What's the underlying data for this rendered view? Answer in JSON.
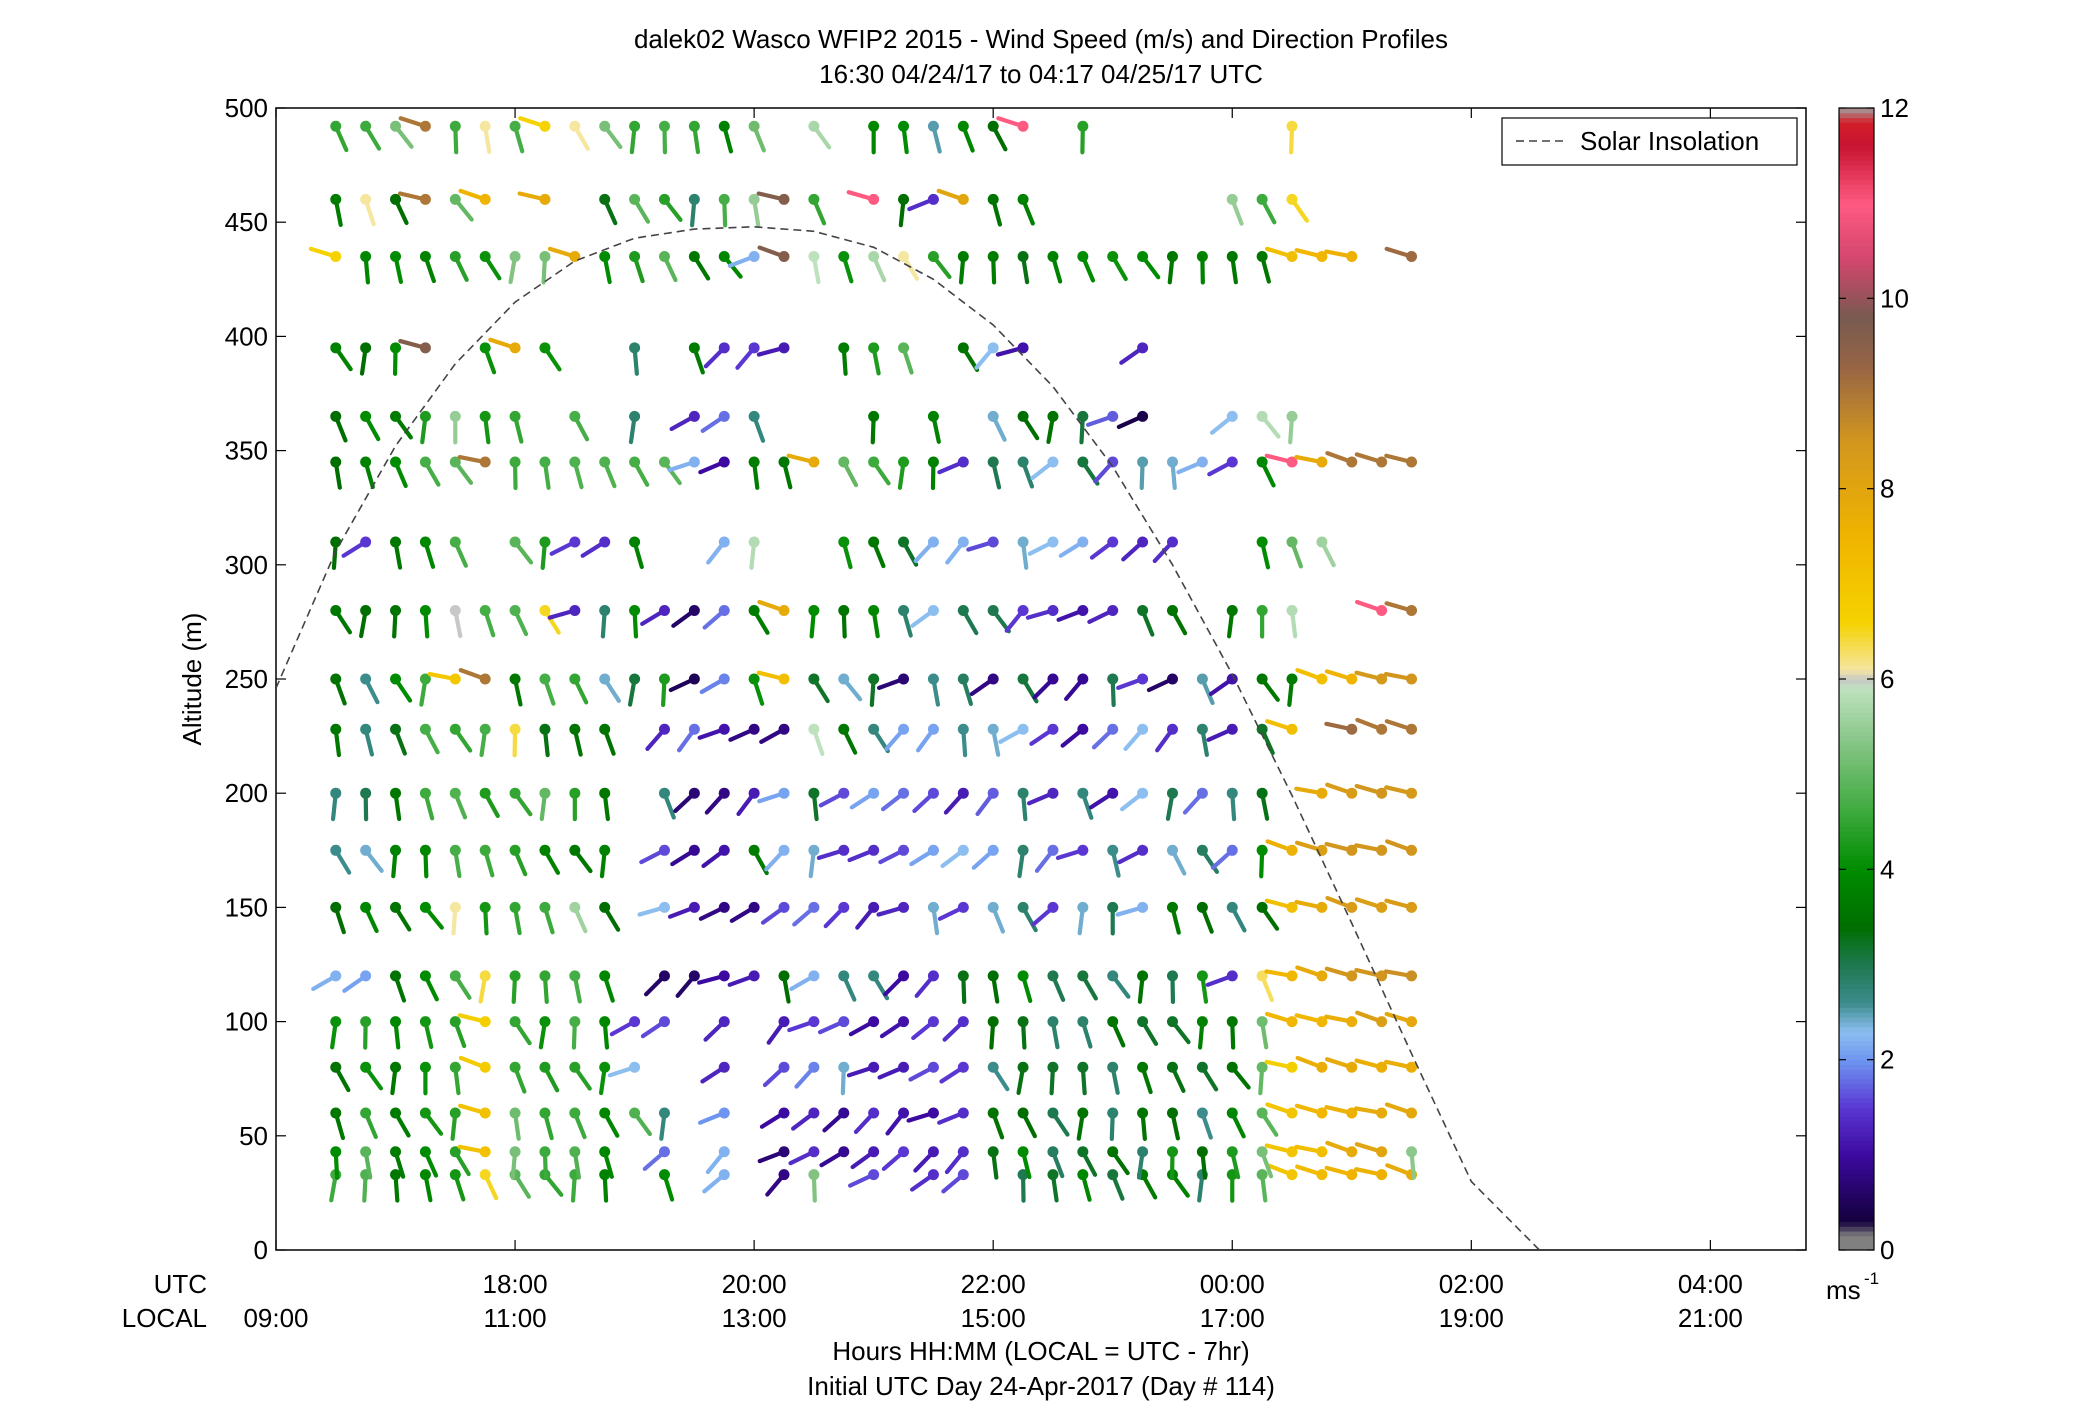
{
  "chart_data": {
    "type": "wind-barb-profile",
    "title_line1": "dalek02 Wasco WFIP2 2015 - Wind Speed (m/s) and Direction Profiles",
    "title_line2": "16:30 04/24/17 to 04:17 04/25/17  UTC",
    "ylabel": "Altitude (m)",
    "xlabel_line1": "Hours HH:MM  (LOCAL = UTC - 7hr)",
    "xlabel_line2": "Initial UTC Day 24-Apr-2017 (Day # 114)",
    "utc_row_label": "UTC",
    "local_row_label": "LOCAL",
    "ylim": [
      0,
      500
    ],
    "y_ticks": [
      0,
      50,
      100,
      150,
      200,
      250,
      300,
      350,
      400,
      450,
      500
    ],
    "y_tick_labels": [
      "0",
      "50",
      "100",
      "150",
      "200",
      "250",
      "300",
      "350",
      "400",
      "450",
      "500"
    ],
    "x_range_hours": [
      16.0,
      28.8
    ],
    "x_ticks_hours": [
      16,
      18,
      20,
      22,
      24,
      26,
      28
    ],
    "x_tick_utc": [
      "",
      "18:00",
      "20:00",
      "22:00",
      "00:00",
      "02:00",
      "04:00"
    ],
    "x_tick_local": [
      "09:00",
      "11:00",
      "13:00",
      "15:00",
      "17:00",
      "19:00",
      "21:00"
    ],
    "legend": {
      "entry": "Solar Insolation",
      "placement": "top-right",
      "style": "dashed"
    },
    "colorbar": {
      "unit_label": "ms",
      "unit_exponent": "-1",
      "range": [
        0,
        12
      ],
      "ticks": [
        0,
        2,
        4,
        6,
        8,
        10,
        12
      ],
      "tick_labels": [
        "0",
        "2",
        "4",
        "6",
        "8",
        "10",
        "12"
      ],
      "stops": [
        {
          "v": 0.0,
          "c": "#808080"
        },
        {
          "v": 0.15,
          "c": "#808080"
        },
        {
          "v": 0.3,
          "c": "#14003c"
        },
        {
          "v": 1.0,
          "c": "#3c0aa0"
        },
        {
          "v": 1.5,
          "c": "#5a37d2"
        },
        {
          "v": 2.0,
          "c": "#6e96f0"
        },
        {
          "v": 2.3,
          "c": "#8cbef0"
        },
        {
          "v": 2.6,
          "c": "#3c8c8c"
        },
        {
          "v": 3.0,
          "c": "#1e7850"
        },
        {
          "v": 3.4,
          "c": "#006e00"
        },
        {
          "v": 4.0,
          "c": "#008c00"
        },
        {
          "v": 4.6,
          "c": "#3caa3c"
        },
        {
          "v": 5.3,
          "c": "#82c382"
        },
        {
          "v": 5.9,
          "c": "#bee1be"
        },
        {
          "v": 6.0,
          "c": "#c8c8c8"
        },
        {
          "v": 6.1,
          "c": "#f5e6a0"
        },
        {
          "v": 6.6,
          "c": "#f5d200"
        },
        {
          "v": 7.5,
          "c": "#f0b400"
        },
        {
          "v": 8.5,
          "c": "#d2961e"
        },
        {
          "v": 9.3,
          "c": "#966446"
        },
        {
          "v": 9.8,
          "c": "#785a50"
        },
        {
          "v": 10.4,
          "c": "#d2466e"
        },
        {
          "v": 11.0,
          "c": "#ff5a82"
        },
        {
          "v": 11.6,
          "c": "#c81432"
        },
        {
          "v": 11.85,
          "c": "#d21e28"
        },
        {
          "v": 12.0,
          "c": "#a0a0a0"
        }
      ]
    },
    "solar_insolation_curve": {
      "hours": [
        16.0,
        16.5,
        17.0,
        17.5,
        18.0,
        18.5,
        19.0,
        19.5,
        20.0,
        20.5,
        21.0,
        21.5,
        22.0,
        22.5,
        23.0,
        23.5,
        24.0,
        24.5,
        25.0,
        25.5,
        26.0,
        26.57
      ],
      "altitude_m": [
        246,
        306,
        352,
        388,
        415,
        433,
        443,
        447,
        448,
        446,
        439,
        425,
        405,
        378,
        343,
        300,
        252,
        199,
        143,
        86,
        30,
        0
      ]
    },
    "barb_times_hours": [
      16.5,
      16.75,
      17.0,
      17.25,
      17.5,
      17.75,
      18.0,
      18.25,
      18.5,
      18.75,
      19.0,
      19.25,
      19.5,
      19.75,
      20.0,
      20.25,
      20.5,
      20.75,
      21.0,
      21.25,
      21.5,
      21.75,
      22.0,
      22.25,
      22.5,
      22.75,
      23.0,
      23.25,
      23.5,
      23.75,
      24.0,
      24.25,
      24.5,
      24.75,
      25.0,
      25.25,
      25.5
    ],
    "barb_altitudes_m": [
      33,
      43,
      60,
      80,
      100,
      120,
      150,
      175,
      200,
      228,
      250,
      280,
      310,
      345,
      365,
      395,
      435,
      460,
      492
    ],
    "wind_speed_ms": [
      [
        4.6,
        4.8,
        3.6,
        3.9,
        4.2,
        6.5,
        4.9,
        4.5,
        4.6,
        3.8,
        0.0,
        4.0,
        0.0,
        2.2,
        0.0,
        0.8,
        5.3,
        0.0,
        1.6,
        0.0,
        1.4,
        1.6,
        0.0,
        3.0,
        3.2,
        3.9,
        3.1,
        3.7,
        3.8,
        2.8,
        4.2,
        4.9,
        7.0,
        7.3,
        7.5,
        7.6,
        7.8
      ],
      [
        4.0,
        4.9,
        3.7,
        4.0,
        4.4,
        7.1,
        5.2,
        4.6,
        4.8,
        3.9,
        0.0,
        1.8,
        0.0,
        2.2,
        0.0,
        0.7,
        1.4,
        0.9,
        1.2,
        1.5,
        1.2,
        1.4,
        3.3,
        4.0,
        2.9,
        3.2,
        3.5,
        2.8,
        4.2,
        3.4,
        4.3,
        5.2,
        7.0,
        7.2,
        7.8,
        8.0,
        5.4
      ],
      [
        3.6,
        4.5,
        3.7,
        4.2,
        4.4,
        7.1,
        5.1,
        4.5,
        4.6,
        3.9,
        4.8,
        2.7,
        0.0,
        2.0,
        0.0,
        1.0,
        1.3,
        0.9,
        1.4,
        1.1,
        1.0,
        1.4,
        3.5,
        3.4,
        3.0,
        3.5,
        2.8,
        3.5,
        3.4,
        2.6,
        3.9,
        4.9,
        7.0,
        7.4,
        7.6,
        7.8,
        7.9
      ],
      [
        3.5,
        4.1,
        3.6,
        4.1,
        4.5,
        6.8,
        4.5,
        4.3,
        4.4,
        4.1,
        2.3,
        0.0,
        0.0,
        1.3,
        0.0,
        1.6,
        1.9,
        2.4,
        1.2,
        1.2,
        1.6,
        1.5,
        2.6,
        3.3,
        3.2,
        3.2,
        2.8,
        3.6,
        3.3,
        3.2,
        3.5,
        5.0,
        6.7,
        7.7,
        7.8,
        7.7,
        7.7
      ],
      [
        4.1,
        4.4,
        3.9,
        4.2,
        4.4,
        6.7,
        4.5,
        4.1,
        4.7,
        3.9,
        1.5,
        1.6,
        0.0,
        1.3,
        0.0,
        1.2,
        1.5,
        1.6,
        1.0,
        1.1,
        1.5,
        1.4,
        3.4,
        3.3,
        2.8,
        2.8,
        3.5,
        3.2,
        3.2,
        3.8,
        3.6,
        5.1,
        7.4,
        7.4,
        7.7,
        8.2,
        7.9
      ],
      [
        2.2,
        2.1,
        3.5,
        4.0,
        4.7,
        6.4,
        4.4,
        4.5,
        4.7,
        3.9,
        0.0,
        0.6,
        0.6,
        1.0,
        1.2,
        3.4,
        2.2,
        2.7,
        2.7,
        1.0,
        1.4,
        3.3,
        3.4,
        4.0,
        3.0,
        3.1,
        2.7,
        3.5,
        3.0,
        4.2,
        1.4,
        6.3,
        7.4,
        7.8,
        8.5,
        8.5,
        8.6
      ],
      [
        3.4,
        3.9,
        3.5,
        4.0,
        6.1,
        4.2,
        4.5,
        4.6,
        5.6,
        3.4,
        0.0,
        2.3,
        1.2,
        0.8,
        0.8,
        1.6,
        1.8,
        1.5,
        1.2,
        1.3,
        2.4,
        1.5,
        2.4,
        2.8,
        1.5,
        2.4,
        3.0,
        2.2,
        3.6,
        3.4,
        2.7,
        3.4,
        7.2,
        7.8,
        8.3,
        8.2,
        8.3
      ],
      [
        2.6,
        2.4,
        3.8,
        3.9,
        4.7,
        4.6,
        4.4,
        3.8,
        3.6,
        3.8,
        0.0,
        1.6,
        0.9,
        1.1,
        3.7,
        2.2,
        2.4,
        1.4,
        1.4,
        1.6,
        2.1,
        2.3,
        2.1,
        2.8,
        1.8,
        1.5,
        2.6,
        1.4,
        2.4,
        2.9,
        1.8,
        4.0,
        7.6,
        8.2,
        8.5,
        8.5,
        8.5
      ],
      [
        2.7,
        3.0,
        3.6,
        4.6,
        4.8,
        4.3,
        4.5,
        5.0,
        4.4,
        3.6,
        0.0,
        2.7,
        0.7,
        0.8,
        1.2,
        2.1,
        3.2,
        1.6,
        2.1,
        1.8,
        1.6,
        1.2,
        1.7,
        2.8,
        1.3,
        2.7,
        1.1,
        2.3,
        3.0,
        1.8,
        2.7,
        3.3,
        0.0,
        7.8,
        8.3,
        8.5,
        8.4
      ],
      [
        3.6,
        2.7,
        3.3,
        4.7,
        4.5,
        4.7,
        6.4,
        3.3,
        3.5,
        3.5,
        0.0,
        1.3,
        1.8,
        1.1,
        0.8,
        0.8,
        5.9,
        3.6,
        2.7,
        2.1,
        2.1,
        2.6,
        2.4,
        2.3,
        1.5,
        1.0,
        1.8,
        2.3,
        1.4,
        2.8,
        1.2,
        3.2,
        7.2,
        0.0,
        9.2,
        9.0,
        9.0
      ],
      [
        3.5,
        2.6,
        4.0,
        4.6,
        6.9,
        9.0,
        3.6,
        4.7,
        4.5,
        2.4,
        3.1,
        4.3,
        0.5,
        1.9,
        4.1,
        7.2,
        3.2,
        2.4,
        3.2,
        0.7,
        2.6,
        2.9,
        0.8,
        3.1,
        0.9,
        0.9,
        3.0,
        1.5,
        0.6,
        2.5,
        1.1,
        3.6,
        3.7,
        7.2,
        7.5,
        8.4,
        8.5
      ],
      [
        3.6,
        3.4,
        3.5,
        4.0,
        6.0,
        4.7,
        4.8,
        6.5,
        1.3,
        2.8,
        4.0,
        1.3,
        0.6,
        1.8,
        3.7,
        7.8,
        4.0,
        3.5,
        3.9,
        2.8,
        2.3,
        3.0,
        3.0,
        1.5,
        1.4,
        1.1,
        1.3,
        3.2,
        3.5,
        0.0,
        3.6,
        4.5,
        5.8,
        0.0,
        0.0,
        11.0,
        9.0
      ],
      [
        3.4,
        1.5,
        3.6,
        3.9,
        4.7,
        0.0,
        4.9,
        4.3,
        1.5,
        1.4,
        3.8,
        0.0,
        0.0,
        2.2,
        5.8,
        0.0,
        0.0,
        4.1,
        3.6,
        3.2,
        2.2,
        2.2,
        1.6,
        2.4,
        2.3,
        2.2,
        1.5,
        1.3,
        1.4,
        0.0,
        0.0,
        4.0,
        5.0,
        5.6,
        0.0,
        0.0,
        0.0
      ],
      [
        3.4,
        3.8,
        4.0,
        4.7,
        4.9,
        9.0,
        4.6,
        4.7,
        4.8,
        4.8,
        4.7,
        4.9,
        2.2,
        1.0,
        3.7,
        3.6,
        7.8,
        5.0,
        4.6,
        4.3,
        3.8,
        1.4,
        3.0,
        2.8,
        2.3,
        3.1,
        1.6,
        2.5,
        2.4,
        2.2,
        1.5,
        3.9,
        11.0,
        7.8,
        9.0,
        9.0,
        9.0
      ],
      [
        3.4,
        4.0,
        3.7,
        4.3,
        5.5,
        4.2,
        4.5,
        0.0,
        4.7,
        0.0,
        2.8,
        0.0,
        1.3,
        1.8,
        2.7,
        0.0,
        0.0,
        0.0,
        3.6,
        0.0,
        3.8,
        0.0,
        2.4,
        3.4,
        3.5,
        3.1,
        1.7,
        0.4,
        0.0,
        0.0,
        2.3,
        5.8,
        5.5,
        0.0,
        0.0,
        0.0,
        0.0
      ],
      [
        3.8,
        3.4,
        4.0,
        9.6,
        0.0,
        4.1,
        7.8,
        4.1,
        0.0,
        0.0,
        2.8,
        0.0,
        3.7,
        1.4,
        1.5,
        1.2,
        0.0,
        3.7,
        4.3,
        4.9,
        0.0,
        3.5,
        2.3,
        1.1,
        0.0,
        0.0,
        0.0,
        1.3,
        0.0,
        0.0,
        0.0,
        0.0,
        0.0,
        0.0,
        0.0,
        0.0,
        0.0
      ],
      [
        6.6,
        3.9,
        4.0,
        3.8,
        4.4,
        4.1,
        5.3,
        5.2,
        7.8,
        4.0,
        4.3,
        4.9,
        3.6,
        3.9,
        2.2,
        9.6,
        5.9,
        4.1,
        5.7,
        6.1,
        4.4,
        3.7,
        3.7,
        3.3,
        3.8,
        4.0,
        4.1,
        4.0,
        3.6,
        3.8,
        3.6,
        3.6,
        7.2,
        7.4,
        7.6,
        0.0,
        9.2
      ],
      [
        3.7,
        6.1,
        3.4,
        9.0,
        5.0,
        7.5,
        0.0,
        7.8,
        0.0,
        3.3,
        4.9,
        4.4,
        2.8,
        4.7,
        5.5,
        9.6,
        4.5,
        0.0,
        11.0,
        3.4,
        1.4,
        8.0,
        3.5,
        3.8,
        0.0,
        0.0,
        0.0,
        0.0,
        0.0,
        0.0,
        5.5,
        4.6,
        6.5,
        0.0,
        0.0,
        0.0,
        0.0
      ],
      [
        4.5,
        4.6,
        5.2,
        9.0,
        4.6,
        6.1,
        4.7,
        6.6,
        6.1,
        5.2,
        4.5,
        4.7,
        4.5,
        3.8,
        5.1,
        0.0,
        5.7,
        0.0,
        3.9,
        4.0,
        2.5,
        3.9,
        3.4,
        11.0,
        0.0,
        4.4,
        0.0,
        0.0,
        0.0,
        0.0,
        0.0,
        0.0,
        6.4,
        0.0,
        0.0,
        0.0,
        0.0
      ]
    ]
  }
}
